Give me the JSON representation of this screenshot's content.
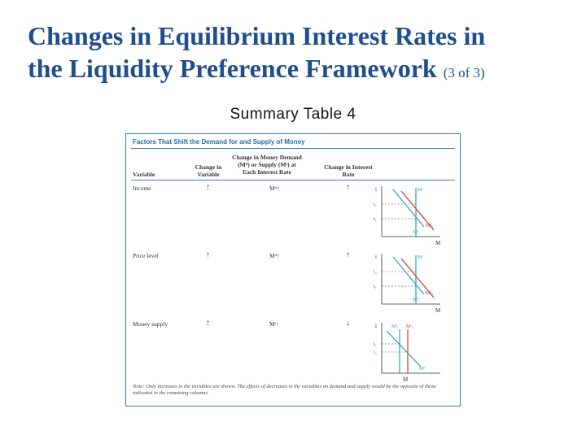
{
  "slide": {
    "title_line1": "Changes in Equilibrium Interest Rates in",
    "title_line2": "the Liquidity Preference Framework",
    "title_suffix": "(3 of 3)",
    "subtitle": "Summary Table 4"
  },
  "table": {
    "title": "Factors That Shift the Demand for and Supply of Money",
    "headers": {
      "variable": "Variable",
      "change_in_variable": "Change in Variable",
      "change_md_ms": "Change in Money Demand (Mᵈ) or Supply (Mˢ) at Each Interest Rate",
      "change_rate": "Change in Interest Rate"
    },
    "rows": [
      {
        "variable": "Income",
        "change": "↑",
        "effect": "Mᵈ↑",
        "rate": "↑",
        "graph": {
          "axis_y": "i",
          "axis_x": "M",
          "supply": "Mˢ",
          "d1": "Mᵈ₁",
          "d2": "Mᵈ₂",
          "i1": "i₁",
          "i2": "i₂"
        }
      },
      {
        "variable": "Price level",
        "change": "↑",
        "effect": "Mᵈ↑",
        "rate": "↑",
        "graph": {
          "axis_y": "i",
          "axis_x": "M",
          "supply": "Mˢ",
          "d1": "Mᵈ₁",
          "d2": "Mᵈ₂",
          "i1": "i₁",
          "i2": "i₂"
        }
      },
      {
        "variable": "Money supply",
        "change": "↑",
        "effect": "Mˢ↑",
        "rate": "↓",
        "graph": {
          "axis_y": "i",
          "axis_x": "M",
          "s1": "Mˢ₁",
          "s2": "Mˢ₂",
          "demand": "Mᵈ",
          "i1": "i₁",
          "i2": "i₂"
        }
      }
    ],
    "note": "Note: Only increases in the variables are shown. The effects of decreases in the variables on demand and supply would be the opposite of those indicated in the remaining columns."
  }
}
